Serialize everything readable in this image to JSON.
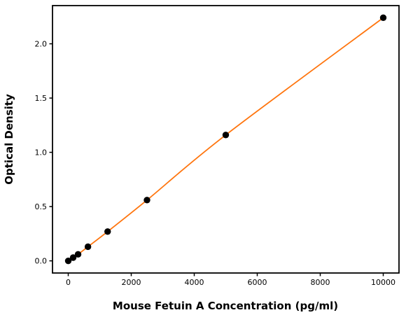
{
  "figure": {
    "background": "#ffffff"
  },
  "chart_data": {
    "type": "line",
    "title": "",
    "xlabel": "Mouse Fetuin A Concentration (pg/ml)",
    "ylabel": "Optical Density",
    "x": [
      0,
      156,
      312,
      625,
      1250,
      2500,
      5000,
      10000
    ],
    "y": [
      0.0,
      0.03,
      0.06,
      0.13,
      0.27,
      0.56,
      1.16,
      2.24
    ],
    "xlim": [
      -500,
      10500
    ],
    "ylim": [
      -0.112,
      2.352
    ],
    "xticks": [
      0,
      2000,
      4000,
      6000,
      8000,
      10000
    ],
    "xtick_labels": [
      "0",
      "2000",
      "4000",
      "6000",
      "8000",
      "10000"
    ],
    "yticks": [
      0.0,
      0.5,
      1.0,
      1.5,
      2.0
    ],
    "ytick_labels": [
      "0.0",
      "0.5",
      "1.0",
      "1.5",
      "2.0"
    ],
    "grid": false,
    "legend": "none",
    "curve": "smooth",
    "marker": "circle",
    "line_color": "#ff750e",
    "marker_color": "#000000",
    "axis_color": "#000000",
    "text_color": "#000000"
  }
}
